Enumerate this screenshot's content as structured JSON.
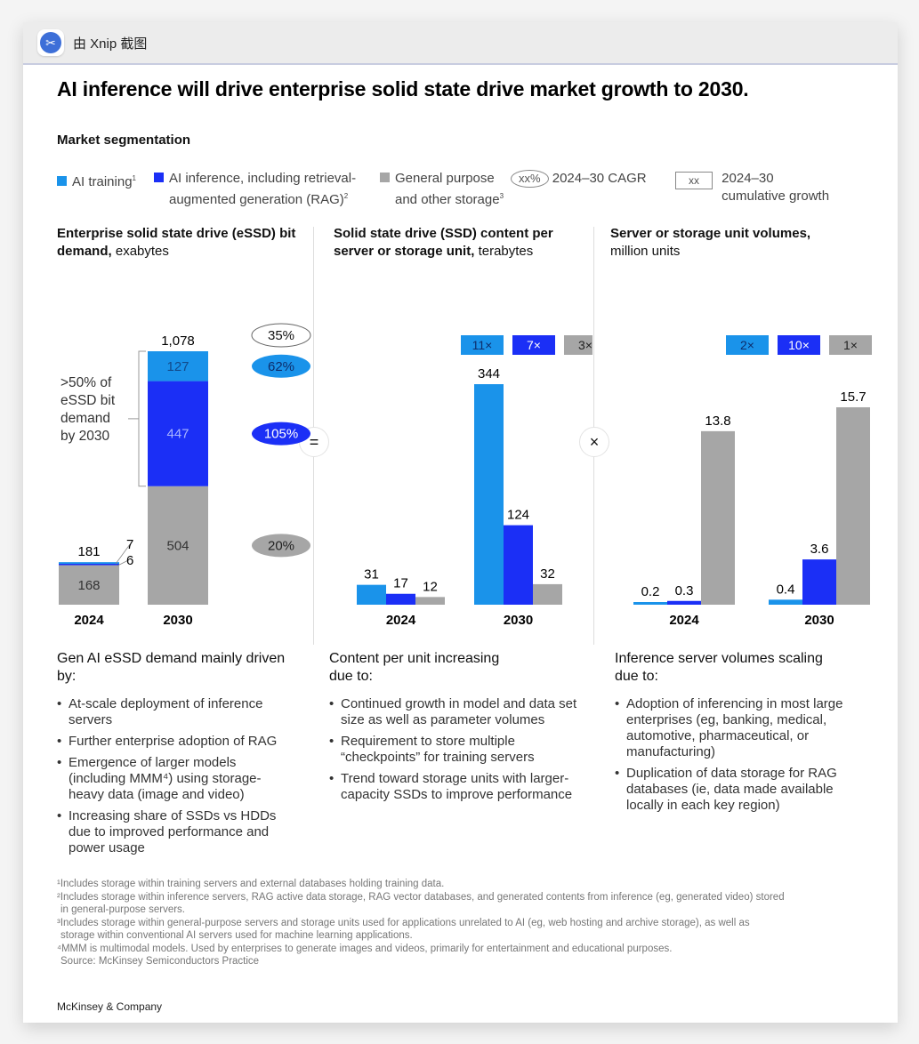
{
  "window": {
    "app_title": "由 Xnip 截图",
    "icon": "xnip-scissors-icon"
  },
  "headline": "AI inference will drive enterprise solid state drive market growth to 2030.",
  "segmentation_label": "Market segmentation",
  "colors": {
    "ai_training": "#1a93ea",
    "ai_inference": "#1b2ff6",
    "general": "#a6a6a6"
  },
  "legend": {
    "ai_training": "AI training",
    "ai_training_sup": "1",
    "ai_inference_l1": "AI inference, including retrieval-",
    "ai_inference_l2": "augmented generation (RAG)",
    "ai_inference_sup": "2",
    "general_l1": "General purpose",
    "general_l2": "and other storage",
    "general_sup": "3",
    "cagr_symbol": "xx%",
    "cagr_label": "2024–30 CAGR",
    "cum_symbol": "xx",
    "cum_label_l1": "2024–30",
    "cum_label_l2": "cumulative growth"
  },
  "operators": {
    "equals": "=",
    "times": "×"
  },
  "chart_data": [
    {
      "type": "bar",
      "stacked": true,
      "title": "Enterprise solid state drive (eSSD) bit demand,",
      "unit": "exabytes",
      "categories": [
        "2024",
        "2030"
      ],
      "series": [
        {
          "name": "General purpose and other storage",
          "values": [
            168,
            504
          ]
        },
        {
          "name": "AI inference, including RAG",
          "values": [
            6,
            447
          ]
        },
        {
          "name": "AI training",
          "values": [
            7,
            127
          ]
        }
      ],
      "totals": [
        "181",
        "1,078"
      ],
      "labels_2024": {
        "general": "168",
        "inference": "6",
        "training": "7"
      },
      "labels_2030": {
        "general": "504",
        "inference": "447",
        "training": "127"
      },
      "cagr": {
        "total": "35%",
        "ai_training": "62%",
        "ai_inference": "105%",
        "general": "20%"
      },
      "bracket_annotation": [
        ">50% of",
        "eSSD bit",
        "demand",
        "by 2030"
      ]
    },
    {
      "type": "bar",
      "title": "Solid state drive (SSD) content per server or storage unit,",
      "unit": "terabytes",
      "categories": [
        "2024",
        "2030"
      ],
      "series": [
        {
          "name": "AI training",
          "values": [
            31,
            344
          ]
        },
        {
          "name": "AI inference, including RAG",
          "values": [
            17,
            124
          ]
        },
        {
          "name": "General purpose and other storage",
          "values": [
            12,
            32
          ]
        }
      ],
      "cumulative_growth": [
        "11×",
        "7×",
        "3×"
      ]
    },
    {
      "type": "bar",
      "title": "Server or storage unit volumes,",
      "unit": "million units",
      "categories": [
        "2024",
        "2030"
      ],
      "series": [
        {
          "name": "AI training",
          "values": [
            0.2,
            0.4
          ]
        },
        {
          "name": "AI inference, including RAG",
          "values": [
            0.3,
            3.6
          ]
        },
        {
          "name": "General purpose and other storage",
          "values": [
            13.8,
            15.7
          ]
        }
      ],
      "cumulative_growth": [
        "2×",
        "10×",
        "1×"
      ]
    }
  ],
  "panels": [
    {
      "title_bold": "Enterprise solid state drive (eSSD) bit demand,",
      "title_unit": "exabytes"
    },
    {
      "title_bold": "Solid state drive (SSD) content per server or storage unit,",
      "title_unit": "terabytes"
    },
    {
      "title_bold": "Server or storage unit volumes,",
      "title_unit": "million units"
    }
  ],
  "drivers": [
    {
      "heading": "Gen AI eSSD demand mainly driven by:",
      "items": [
        "At-scale deployment of inference servers",
        "Further enterprise adoption of RAG",
        "Emergence of larger models (including MMM⁴) using storage-heavy data (image and video)",
        "Increasing share of SSDs vs HDDs due to improved performance and power usage"
      ]
    },
    {
      "heading": "Content per unit increasing due to:",
      "items": [
        "Continued growth in model and data set size as well as parameter volumes",
        "Requirement to store multiple “checkpoints” for training servers",
        "Trend toward storage units with larger-capacity SSDs to improve performance"
      ]
    },
    {
      "heading": "Inference server volumes scaling due to:",
      "items": [
        "Adoption of inferencing in most large enterprises (eg, banking, medical, automotive, pharmaceutical, or manufacturing)",
        "Duplication of data storage for RAG databases (ie, data made available locally in each key region)"
      ]
    }
  ],
  "footnotes": [
    "¹Includes storage within training servers and external databases holding training data.",
    "²Includes storage within inference servers, RAG active data storage, RAG vector databases, and generated contents from inference (eg, generated video) stored",
    "in general-purpose servers.",
    "³Includes storage within general-purpose servers and storage units used for applications unrelated to AI (eg, web hosting and archive storage), as well as",
    "storage within conventional AI servers used for machine learning applications.",
    "⁴MMM is multimodal models. Used by enterprises to generate images and videos, primarily for entertainment and educational purposes.",
    "Source: McKinsey Semiconductors Practice"
  ],
  "brand": "McKinsey & Company"
}
